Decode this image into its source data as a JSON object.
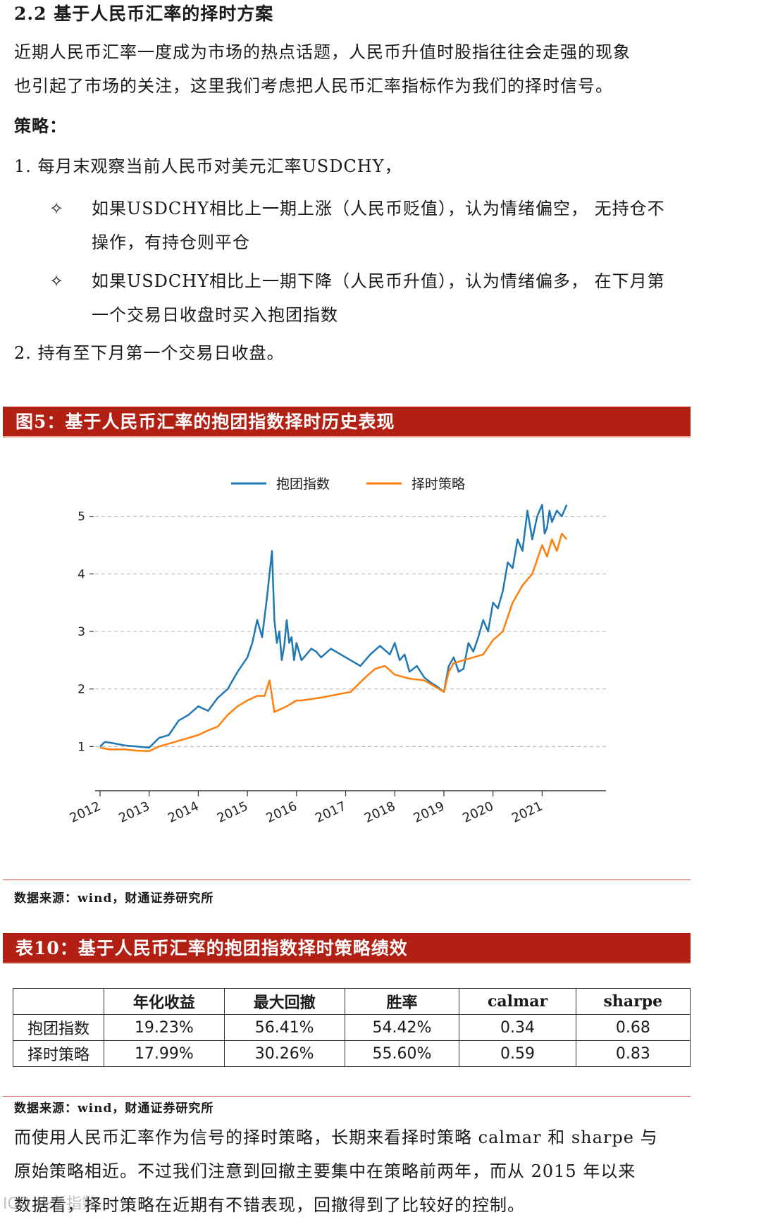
{
  "section": {
    "title": "2.2  基于人民币汇率的择时方案"
  },
  "intro": [
    "近期人民币汇率一度成为市场的热点话题，人民币升值时股指往往会走强的现象",
    "也引起了市场的关注，这里我们考虑把人民币汇率指标作为我们的择时信号。"
  ],
  "strategy_heading": "策略：",
  "step1": "1. 每月末观察当前人民币对美元汇率USDCHY，",
  "bullets": [
    {
      "symbol": "✧",
      "lines": [
        "如果USDCHY相比上一期上涨（人民币贬值），认为情绪偏空， 无持仓不",
        "操作，有持仓则平仓"
      ]
    },
    {
      "symbol": "✧",
      "lines": [
        "如果USDCHY相比上一期下降（人民币升值），认为情绪偏多， 在下月第",
        "一个交易日收盘时买入抱团指数"
      ]
    }
  ],
  "step2": "2. 持有至下月第一个交易日收盘。",
  "figure": {
    "title": "图5：基于人民币汇率的抱团指数择时历史表现",
    "source": "数据来源：wind，财通证券研究所"
  },
  "chart_data": {
    "type": "line",
    "title": "",
    "xlabel": "",
    "ylabel": "",
    "ylim": [
      0.6,
      5.4
    ],
    "yticks": [
      1,
      2,
      3,
      4,
      5
    ],
    "xticks": [
      "2012",
      "2013",
      "2014",
      "2015",
      "2016",
      "2017",
      "2018",
      "2019",
      "2020",
      "2021"
    ],
    "grid": "horizontal dashed",
    "legend": "top-center",
    "series": [
      {
        "name": "抱团指数",
        "color": "#1f77b4",
        "x": [
          2012.0,
          2012.1,
          2012.25,
          2012.5,
          2012.75,
          2013.0,
          2013.2,
          2013.4,
          2013.6,
          2013.8,
          2014.0,
          2014.2,
          2014.4,
          2014.6,
          2014.8,
          2015.0,
          2015.1,
          2015.2,
          2015.3,
          2015.4,
          2015.45,
          2015.5,
          2015.55,
          2015.6,
          2015.65,
          2015.7,
          2015.75,
          2015.8,
          2015.85,
          2015.9,
          2015.95,
          2016.0,
          2016.1,
          2016.2,
          2016.3,
          2016.4,
          2016.5,
          2016.7,
          2016.9,
          2017.1,
          2017.3,
          2017.5,
          2017.7,
          2017.9,
          2018.0,
          2018.1,
          2018.2,
          2018.3,
          2018.45,
          2018.6,
          2018.75,
          2018.85,
          2019.0,
          2019.1,
          2019.2,
          2019.3,
          2019.4,
          2019.5,
          2019.6,
          2019.7,
          2019.8,
          2019.9,
          2020.0,
          2020.1,
          2020.2,
          2020.3,
          2020.4,
          2020.5,
          2020.6,
          2020.7,
          2020.8,
          2020.9,
          2021.0,
          2021.05,
          2021.1,
          2021.15,
          2021.2,
          2021.3,
          2021.4,
          2021.5
        ],
        "values": [
          1.0,
          1.08,
          1.06,
          1.02,
          1.0,
          0.98,
          1.15,
          1.2,
          1.45,
          1.55,
          1.7,
          1.62,
          1.85,
          2.0,
          2.3,
          2.55,
          2.8,
          3.2,
          2.9,
          3.6,
          4.0,
          4.4,
          3.2,
          2.8,
          3.0,
          2.5,
          2.75,
          3.2,
          2.8,
          2.9,
          2.5,
          2.8,
          2.5,
          2.6,
          2.7,
          2.65,
          2.55,
          2.7,
          2.6,
          2.5,
          2.4,
          2.6,
          2.75,
          2.6,
          2.8,
          2.5,
          2.6,
          2.3,
          2.4,
          2.2,
          2.1,
          2.05,
          1.95,
          2.4,
          2.55,
          2.3,
          2.35,
          2.8,
          2.65,
          2.9,
          3.2,
          3.0,
          3.5,
          3.4,
          3.7,
          4.2,
          4.1,
          4.6,
          4.4,
          5.1,
          4.6,
          5.0,
          5.2,
          4.7,
          4.8,
          5.1,
          4.9,
          5.1,
          5.0,
          5.2
        ]
      },
      {
        "name": "择时策略",
        "color": "#ff7f0e",
        "x": [
          2012.0,
          2012.2,
          2012.5,
          2012.75,
          2013.0,
          2013.2,
          2013.4,
          2013.6,
          2013.8,
          2014.0,
          2014.2,
          2014.4,
          2014.6,
          2014.8,
          2015.0,
          2015.2,
          2015.35,
          2015.45,
          2015.5,
          2015.55,
          2015.8,
          2016.0,
          2016.1,
          2016.5,
          2016.8,
          2017.1,
          2017.4,
          2017.6,
          2017.8,
          2018.0,
          2018.3,
          2018.6,
          2018.8,
          2019.0,
          2019.1,
          2019.2,
          2019.4,
          2019.6,
          2019.8,
          2020.0,
          2020.2,
          2020.4,
          2020.6,
          2020.8,
          2021.0,
          2021.1,
          2021.2,
          2021.3,
          2021.4,
          2021.5
        ],
        "values": [
          0.98,
          0.95,
          0.95,
          0.93,
          0.92,
          1.0,
          1.05,
          1.1,
          1.15,
          1.2,
          1.28,
          1.35,
          1.55,
          1.7,
          1.8,
          1.88,
          1.88,
          2.15,
          1.88,
          1.6,
          1.7,
          1.8,
          1.8,
          1.85,
          1.9,
          1.95,
          2.2,
          2.35,
          2.4,
          2.25,
          2.18,
          2.15,
          2.05,
          1.95,
          2.3,
          2.45,
          2.5,
          2.55,
          2.6,
          2.85,
          3.0,
          3.5,
          3.8,
          4.0,
          4.5,
          4.3,
          4.6,
          4.4,
          4.7,
          4.6
        ]
      }
    ]
  },
  "table": {
    "title": "表10：基于人民币汇率的抱团指数择时策略绩效",
    "headers": [
      "",
      "年化收益",
      "最大回撤",
      "胜率",
      "calmar",
      "sharpe"
    ],
    "rows": [
      [
        "抱团指数",
        "19.23%",
        "56.41%",
        "54.42%",
        "0.34",
        "0.68"
      ],
      [
        "择时策略",
        "17.99%",
        "30.26%",
        "55.60%",
        "0.59",
        "0.83"
      ]
    ],
    "source": "数据来源：wind，财通证券研究所"
  },
  "conclusion": [
    "而使用人民币汇率作为信号的择时策略，长期来看择时策略 calmar 和 sharpe 与",
    "原始策略相近。不过我们注意到回撤主要集中在策略前两年，而从 2015 年以来",
    "数据看，择时策略在近期有不错表现，回撤得到了比较好的控制。"
  ],
  "watermark": "ICO 头条指数"
}
